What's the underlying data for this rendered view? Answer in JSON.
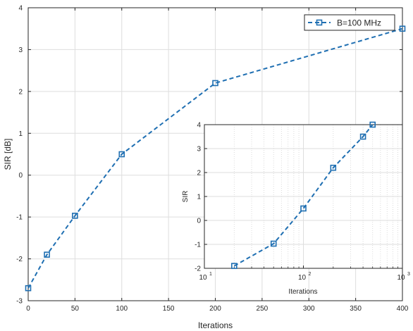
{
  "chart_data": [
    {
      "type": "line",
      "xlabel": "Iterations",
      "ylabel": "SIR [dB]",
      "xlim": [
        0,
        400
      ],
      "ylim": [
        -3,
        4
      ],
      "x_ticks": [
        0,
        50,
        100,
        150,
        200,
        250,
        300,
        350,
        400
      ],
      "y_ticks": [
        -3,
        -2,
        -1,
        0,
        1,
        2,
        3,
        4
      ],
      "grid": true,
      "legend_position": "top-right",
      "series": [
        {
          "name": "B=100 MHz",
          "color": "#1f6fb2",
          "line_style": "dashed",
          "marker": "square",
          "x": [
            0,
            20,
            50,
            100,
            200,
            400
          ],
          "y": [
            -2.7,
            -1.9,
            -0.97,
            0.5,
            2.2,
            3.5
          ]
        }
      ]
    },
    {
      "type": "line",
      "xlabel": "Iterations",
      "ylabel": "SIR",
      "x_scale": "log",
      "xlim": [
        10,
        1000
      ],
      "ylim": [
        -2,
        4
      ],
      "x_tick_labels": [
        "10",
        "10",
        "10"
      ],
      "x_tick_exponents": [
        "1",
        "2",
        "3"
      ],
      "y_ticks": [
        -2,
        -1,
        0,
        1,
        2,
        3,
        4
      ],
      "grid": true,
      "series": [
        {
          "color": "#1f6fb2",
          "line_style": "dashed",
          "marker": "square",
          "x": [
            20,
            50,
            100,
            200,
            400,
            500
          ],
          "y": [
            -1.9,
            -0.97,
            0.5,
            2.2,
            3.5,
            4.0
          ]
        }
      ]
    }
  ]
}
